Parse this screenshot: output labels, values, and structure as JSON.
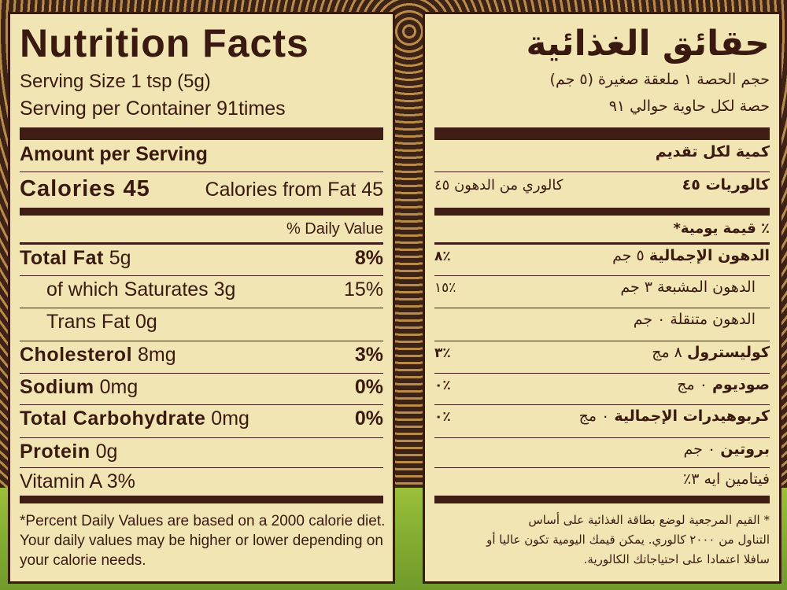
{
  "english": {
    "title": "Nutrition Facts",
    "serving_size": "Serving Size 1 tsp (5g)",
    "servings_per_container": "Serving per Container 91times",
    "amount_header": "Amount per Serving",
    "calories": "Calories 45",
    "calories_from_fat": "Calories from Fat 45",
    "dv_header": "% Daily Value",
    "rows": [
      {
        "name": "Total Fat",
        "amount": "5g",
        "dv": "8%"
      },
      {
        "name": "of which Saturates 3g",
        "dv": "15%"
      },
      {
        "name": "Trans Fat 0g"
      },
      {
        "name": "Cholesterol",
        "amount": "8mg",
        "dv": "3%"
      },
      {
        "name": "Sodium",
        "amount": "0mg",
        "dv": "0%"
      },
      {
        "name": "Total Carbohydrate",
        "amount": "0mg",
        "dv": "0%"
      },
      {
        "name": "Protein",
        "amount": "0g"
      },
      {
        "name": "Vitamin A 3%"
      }
    ],
    "footnote": [
      "*Percent Daily Values are based on a 2000 calorie diet.",
      "Your daily values may be higher or lower depending on",
      "your calorie needs."
    ]
  },
  "arabic": {
    "title": "حقائق الغذائية",
    "serving_size": "حجم الحصة ١ ملعقة صغيرة (٥ جم)",
    "servings_per_container": "حصة لكل حاوية حوالي ٩١",
    "amount_header": "كمية لكل تقديم",
    "calories": "كالوريات ٤٥",
    "calories_from_fat": "كالوري من الدهون ٤٥",
    "dv_header": "٪ قيمة يومية*",
    "rows": [
      {
        "name": "الدهون الإجمالية",
        "amount": "٥ جم",
        "dv": "٪٨"
      },
      {
        "name": "الدهون المشبعة ٣ جم",
        "dv": "٪١٥"
      },
      {
        "name": "الدهون متنقلة ٠ جم"
      },
      {
        "name": "كوليسترول",
        "amount": "٨ مج",
        "dv": "٪٣"
      },
      {
        "name": "صوديوم",
        "amount": "٠ مج",
        "dv": "٪٠"
      },
      {
        "name": "كربوهيدرات الإجمالية",
        "amount": "٠ مج",
        "dv": "٪٠"
      },
      {
        "name": "بروتين",
        "amount": "٠ جم"
      },
      {
        "name": "فيتامين ايه ٣٪"
      }
    ],
    "footnote": [
      "* القيم المرجعية لوضع بطاقة الغذائية على أساس",
      "التناول من ٢٠٠٠ كالوري. يمكن قيمك اليومية تكون عاليا أو",
      "سافلا اعتمادا على احتياجاتك الكالورية."
    ]
  }
}
